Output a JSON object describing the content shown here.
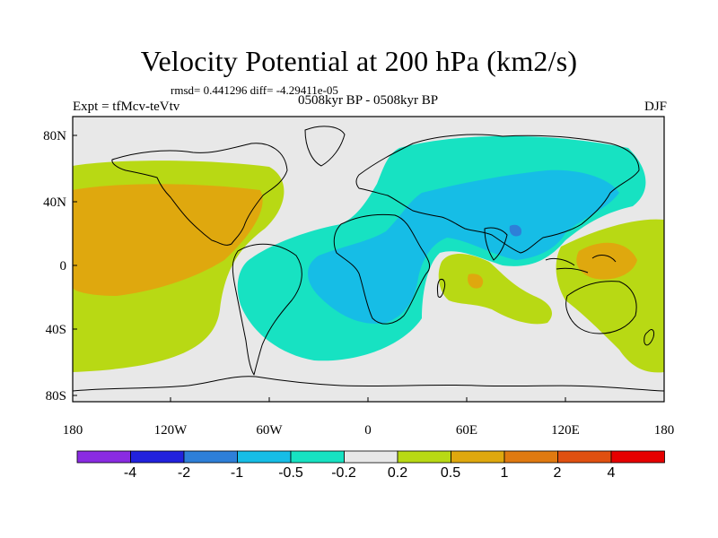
{
  "plot": {
    "title": "Velocity Potential at 200 hPa (km2/s)",
    "stats": "rmsd= 0.441296 diff= -4.29411e-05",
    "expt": "Expt = tfMcv-teVtv",
    "period": "0508kyr BP - 0508kyr BP",
    "season": "DJF",
    "colors": {
      "background": "#e8e8e8",
      "cyan": "#17e2c2",
      "blue": "#16bde6",
      "blue_dark": "#2e7fd8",
      "yellowgreen": "#b8d914",
      "orange": "#dfa80e",
      "orange_dark": "#e07a10"
    }
  },
  "axes": {
    "x_ticks": [
      "180",
      "120W",
      "60W",
      "0",
      "60E",
      "120E",
      "180"
    ],
    "y_ticks": [
      "80N",
      "40N",
      "0",
      "40S",
      "80S"
    ]
  },
  "colorbar": {
    "labels": [
      "-4",
      "-2",
      "-1",
      "-0.5",
      "-0.2",
      "0.2",
      "0.5",
      "1",
      "2",
      "4"
    ],
    "colors": [
      "#8a2be2",
      "#2222dd",
      "#2e7fd8",
      "#16bde6",
      "#17e2c2",
      "#e8e8e8",
      "#b8d914",
      "#dfa80e",
      "#e07a10",
      "#e05010",
      "#e60000"
    ]
  }
}
